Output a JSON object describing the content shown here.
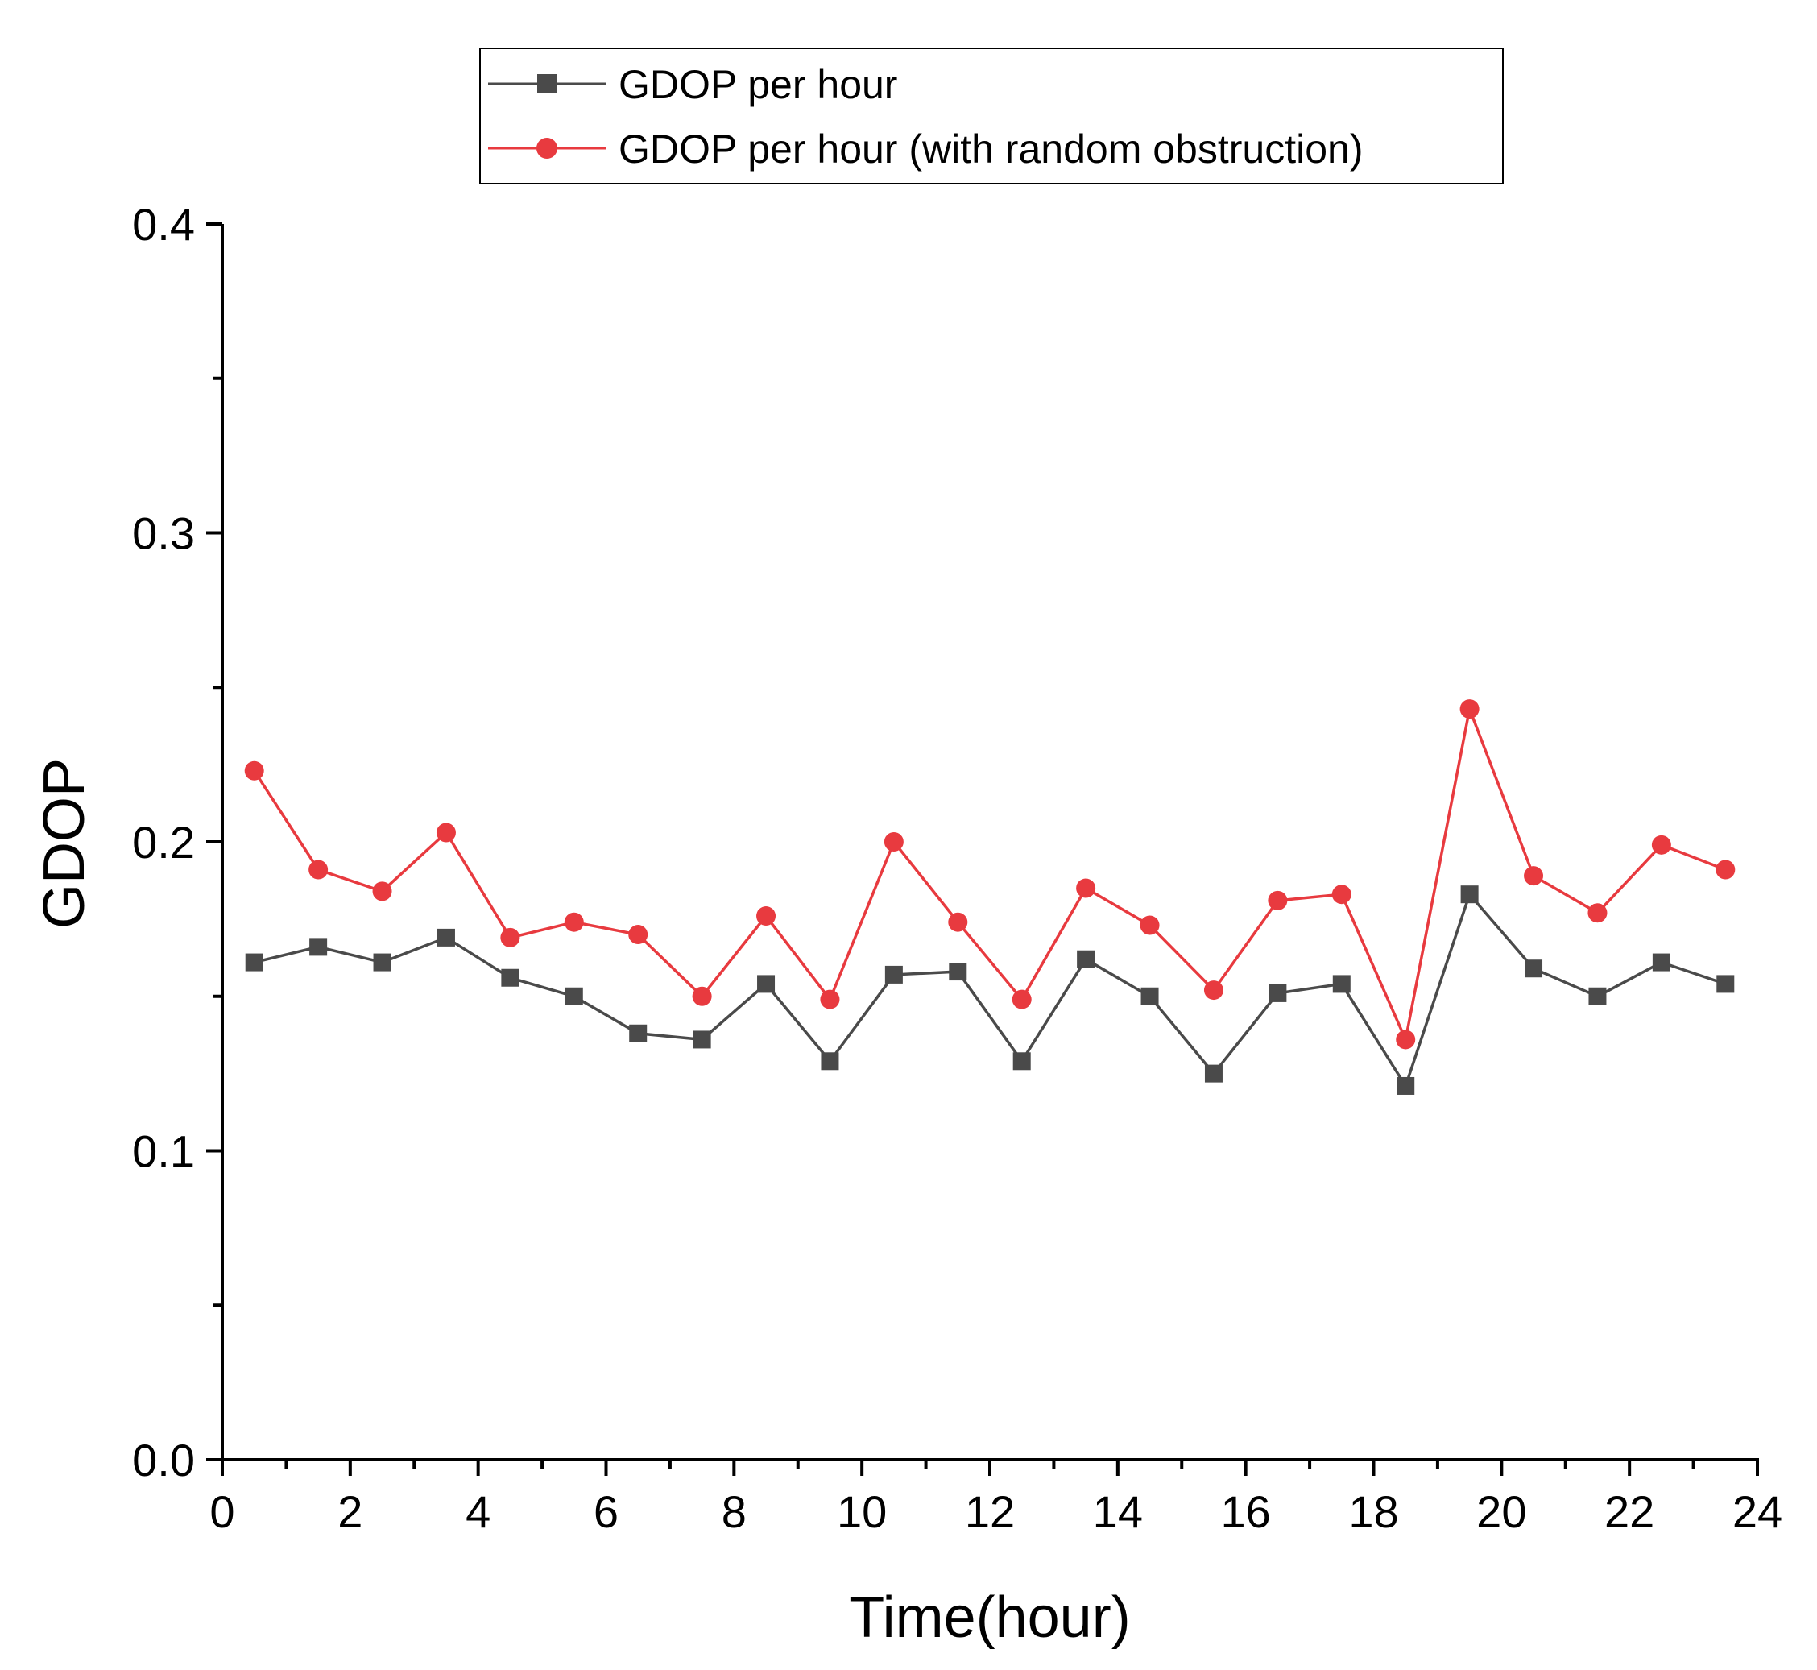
{
  "chart_data": {
    "type": "line",
    "title": "",
    "xlabel": "Time(hour)",
    "ylabel": "GDOP",
    "xlim": [
      0,
      24
    ],
    "ylim": [
      0.0,
      0.4
    ],
    "x_ticks": [
      "0",
      "2",
      "4",
      "6",
      "8",
      "10",
      "12",
      "14",
      "16",
      "18",
      "20",
      "22",
      "24"
    ],
    "y_ticks": [
      "0.0",
      "0.1",
      "0.2",
      "0.3",
      "0.4"
    ],
    "grid": false,
    "legend_position": "top-center",
    "x": [
      0.5,
      1.5,
      2.5,
      3.5,
      4.5,
      5.5,
      6.5,
      7.5,
      8.5,
      9.5,
      10.5,
      11.5,
      12.5,
      13.5,
      14.5,
      15.5,
      16.5,
      17.5,
      18.5,
      19.5,
      20.5,
      21.5,
      22.5,
      23.5
    ],
    "series": [
      {
        "name": "GDOP per hour",
        "color": "#4a4a4a",
        "marker": "square",
        "values": [
          0.161,
          0.166,
          0.161,
          0.169,
          0.156,
          0.15,
          0.138,
          0.136,
          0.154,
          0.129,
          0.157,
          0.158,
          0.129,
          0.162,
          0.15,
          0.125,
          0.151,
          0.154,
          0.121,
          0.183,
          0.159,
          0.15,
          0.161,
          0.154
        ]
      },
      {
        "name": "GDOP per hour (with random obstruction)",
        "color": "#e83a3f",
        "marker": "circle",
        "values": [
          0.223,
          0.191,
          0.184,
          0.203,
          0.169,
          0.174,
          0.17,
          0.15,
          0.176,
          0.149,
          0.2,
          0.174,
          0.149,
          0.185,
          0.173,
          0.152,
          0.181,
          0.183,
          0.136,
          0.243,
          0.189,
          0.177,
          0.199,
          0.191
        ]
      }
    ]
  }
}
